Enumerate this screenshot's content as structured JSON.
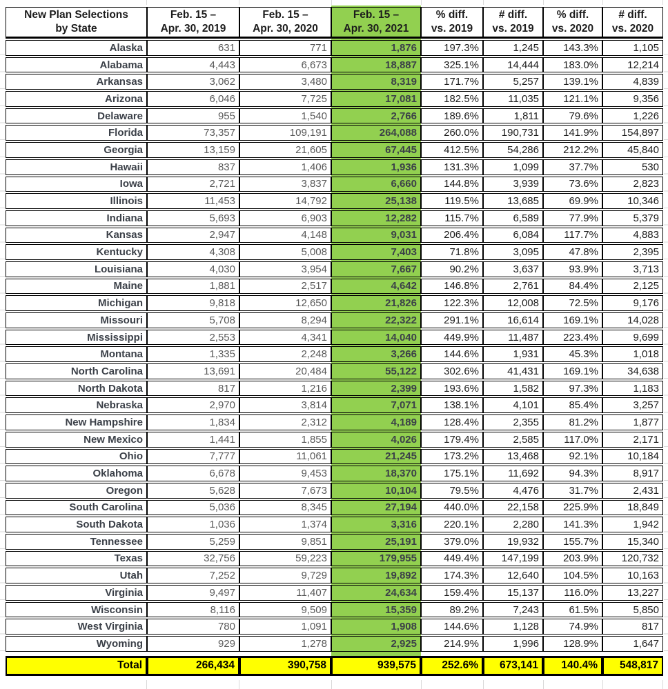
{
  "chart_data": {
    "type": "table",
    "title": "New Plan Selections by State",
    "header": {
      "state": {
        "line1": "New Plan Selections",
        "line2": "by State"
      },
      "cols": [
        {
          "line1": "Feb. 15 –",
          "line2": "Apr. 30, 2019"
        },
        {
          "line1": "Feb. 15 –",
          "line2": "Apr. 30, 2020"
        },
        {
          "line1": "Feb. 15 –",
          "line2": "Apr. 30, 2021"
        },
        {
          "line1": "% diff.",
          "line2": "vs. 2019"
        },
        {
          "line1": "# diff.",
          "line2": "vs. 2019"
        },
        {
          "line1": "% diff.",
          "line2": "vs. 2020"
        },
        {
          "line1": "# diff.",
          "line2": "vs. 2020"
        }
      ],
      "highlighted_column": "Feb. 15 – Apr. 30, 2021"
    },
    "rows": [
      [
        "Alaska",
        "631",
        "771",
        "1,876",
        "197.3%",
        "1,245",
        "143.3%",
        "1,105"
      ],
      [
        "Alabama",
        "4,443",
        "6,673",
        "18,887",
        "325.1%",
        "14,444",
        "183.0%",
        "12,214"
      ],
      [
        "Arkansas",
        "3,062",
        "3,480",
        "8,319",
        "171.7%",
        "5,257",
        "139.1%",
        "4,839"
      ],
      [
        "Arizona",
        "6,046",
        "7,725",
        "17,081",
        "182.5%",
        "11,035",
        "121.1%",
        "9,356"
      ],
      [
        "Delaware",
        "955",
        "1,540",
        "2,766",
        "189.6%",
        "1,811",
        "79.6%",
        "1,226"
      ],
      [
        "Florida",
        "73,357",
        "109,191",
        "264,088",
        "260.0%",
        "190,731",
        "141.9%",
        "154,897"
      ],
      [
        "Georgia",
        "13,159",
        "21,605",
        "67,445",
        "412.5%",
        "54,286",
        "212.2%",
        "45,840"
      ],
      [
        "Hawaii",
        "837",
        "1,406",
        "1,936",
        "131.3%",
        "1,099",
        "37.7%",
        "530"
      ],
      [
        "Iowa",
        "2,721",
        "3,837",
        "6,660",
        "144.8%",
        "3,939",
        "73.6%",
        "2,823"
      ],
      [
        "Illinois",
        "11,453",
        "14,792",
        "25,138",
        "119.5%",
        "13,685",
        "69.9%",
        "10,346"
      ],
      [
        "Indiana",
        "5,693",
        "6,903",
        "12,282",
        "115.7%",
        "6,589",
        "77.9%",
        "5,379"
      ],
      [
        "Kansas",
        "2,947",
        "4,148",
        "9,031",
        "206.4%",
        "6,084",
        "117.7%",
        "4,883"
      ],
      [
        "Kentucky",
        "4,308",
        "5,008",
        "7,403",
        "71.8%",
        "3,095",
        "47.8%",
        "2,395"
      ],
      [
        "Louisiana",
        "4,030",
        "3,954",
        "7,667",
        "90.2%",
        "3,637",
        "93.9%",
        "3,713"
      ],
      [
        "Maine",
        "1,881",
        "2,517",
        "4,642",
        "146.8%",
        "2,761",
        "84.4%",
        "2,125"
      ],
      [
        "Michigan",
        "9,818",
        "12,650",
        "21,826",
        "122.3%",
        "12,008",
        "72.5%",
        "9,176"
      ],
      [
        "Missouri",
        "5,708",
        "8,294",
        "22,322",
        "291.1%",
        "16,614",
        "169.1%",
        "14,028"
      ],
      [
        "Mississippi",
        "2,553",
        "4,341",
        "14,040",
        "449.9%",
        "11,487",
        "223.4%",
        "9,699"
      ],
      [
        "Montana",
        "1,335",
        "2,248",
        "3,266",
        "144.6%",
        "1,931",
        "45.3%",
        "1,018"
      ],
      [
        "North Carolina",
        "13,691",
        "20,484",
        "55,122",
        "302.6%",
        "41,431",
        "169.1%",
        "34,638"
      ],
      [
        "North Dakota",
        "817",
        "1,216",
        "2,399",
        "193.6%",
        "1,582",
        "97.3%",
        "1,183"
      ],
      [
        "Nebraska",
        "2,970",
        "3,814",
        "7,071",
        "138.1%",
        "4,101",
        "85.4%",
        "3,257"
      ],
      [
        "New Hampshire",
        "1,834",
        "2,312",
        "4,189",
        "128.4%",
        "2,355",
        "81.2%",
        "1,877"
      ],
      [
        "New Mexico",
        "1,441",
        "1,855",
        "4,026",
        "179.4%",
        "2,585",
        "117.0%",
        "2,171"
      ],
      [
        "Ohio",
        "7,777",
        "11,061",
        "21,245",
        "173.2%",
        "13,468",
        "92.1%",
        "10,184"
      ],
      [
        "Oklahoma",
        "6,678",
        "9,453",
        "18,370",
        "175.1%",
        "11,692",
        "94.3%",
        "8,917"
      ],
      [
        "Oregon",
        "5,628",
        "7,673",
        "10,104",
        "79.5%",
        "4,476",
        "31.7%",
        "2,431"
      ],
      [
        "South Carolina",
        "5,036",
        "8,345",
        "27,194",
        "440.0%",
        "22,158",
        "225.9%",
        "18,849"
      ],
      [
        "South Dakota",
        "1,036",
        "1,374",
        "3,316",
        "220.1%",
        "2,280",
        "141.3%",
        "1,942"
      ],
      [
        "Tennessee",
        "5,259",
        "9,851",
        "25,191",
        "379.0%",
        "19,932",
        "155.7%",
        "15,340"
      ],
      [
        "Texas",
        "32,756",
        "59,223",
        "179,955",
        "449.4%",
        "147,199",
        "203.9%",
        "120,732"
      ],
      [
        "Utah",
        "7,252",
        "9,729",
        "19,892",
        "174.3%",
        "12,640",
        "104.5%",
        "10,163"
      ],
      [
        "Virginia",
        "9,497",
        "11,407",
        "24,634",
        "159.4%",
        "15,137",
        "116.0%",
        "13,227"
      ],
      [
        "Wisconsin",
        "8,116",
        "9,509",
        "15,359",
        "89.2%",
        "7,243",
        "61.5%",
        "5,850"
      ],
      [
        "West Virginia",
        "780",
        "1,091",
        "1,908",
        "144.6%",
        "1,128",
        "74.9%",
        "817"
      ],
      [
        "Wyoming",
        "929",
        "1,278",
        "2,925",
        "214.9%",
        "1,996",
        "128.9%",
        "1,647"
      ]
    ],
    "total": [
      "Total",
      "266,434",
      "390,758",
      "939,575",
      "252.6%",
      "673,141",
      "140.4%",
      "548,817"
    ],
    "total_row_highlight": "yellow"
  },
  "colors": {
    "highlight_green": "#92D050",
    "total_yellow": "#FFFF00",
    "border": "#000000",
    "text_dark": "#1c1c1c",
    "text_gray": "#595959",
    "text_slate": "#3b4048",
    "gridline": "#d9d9d9"
  }
}
